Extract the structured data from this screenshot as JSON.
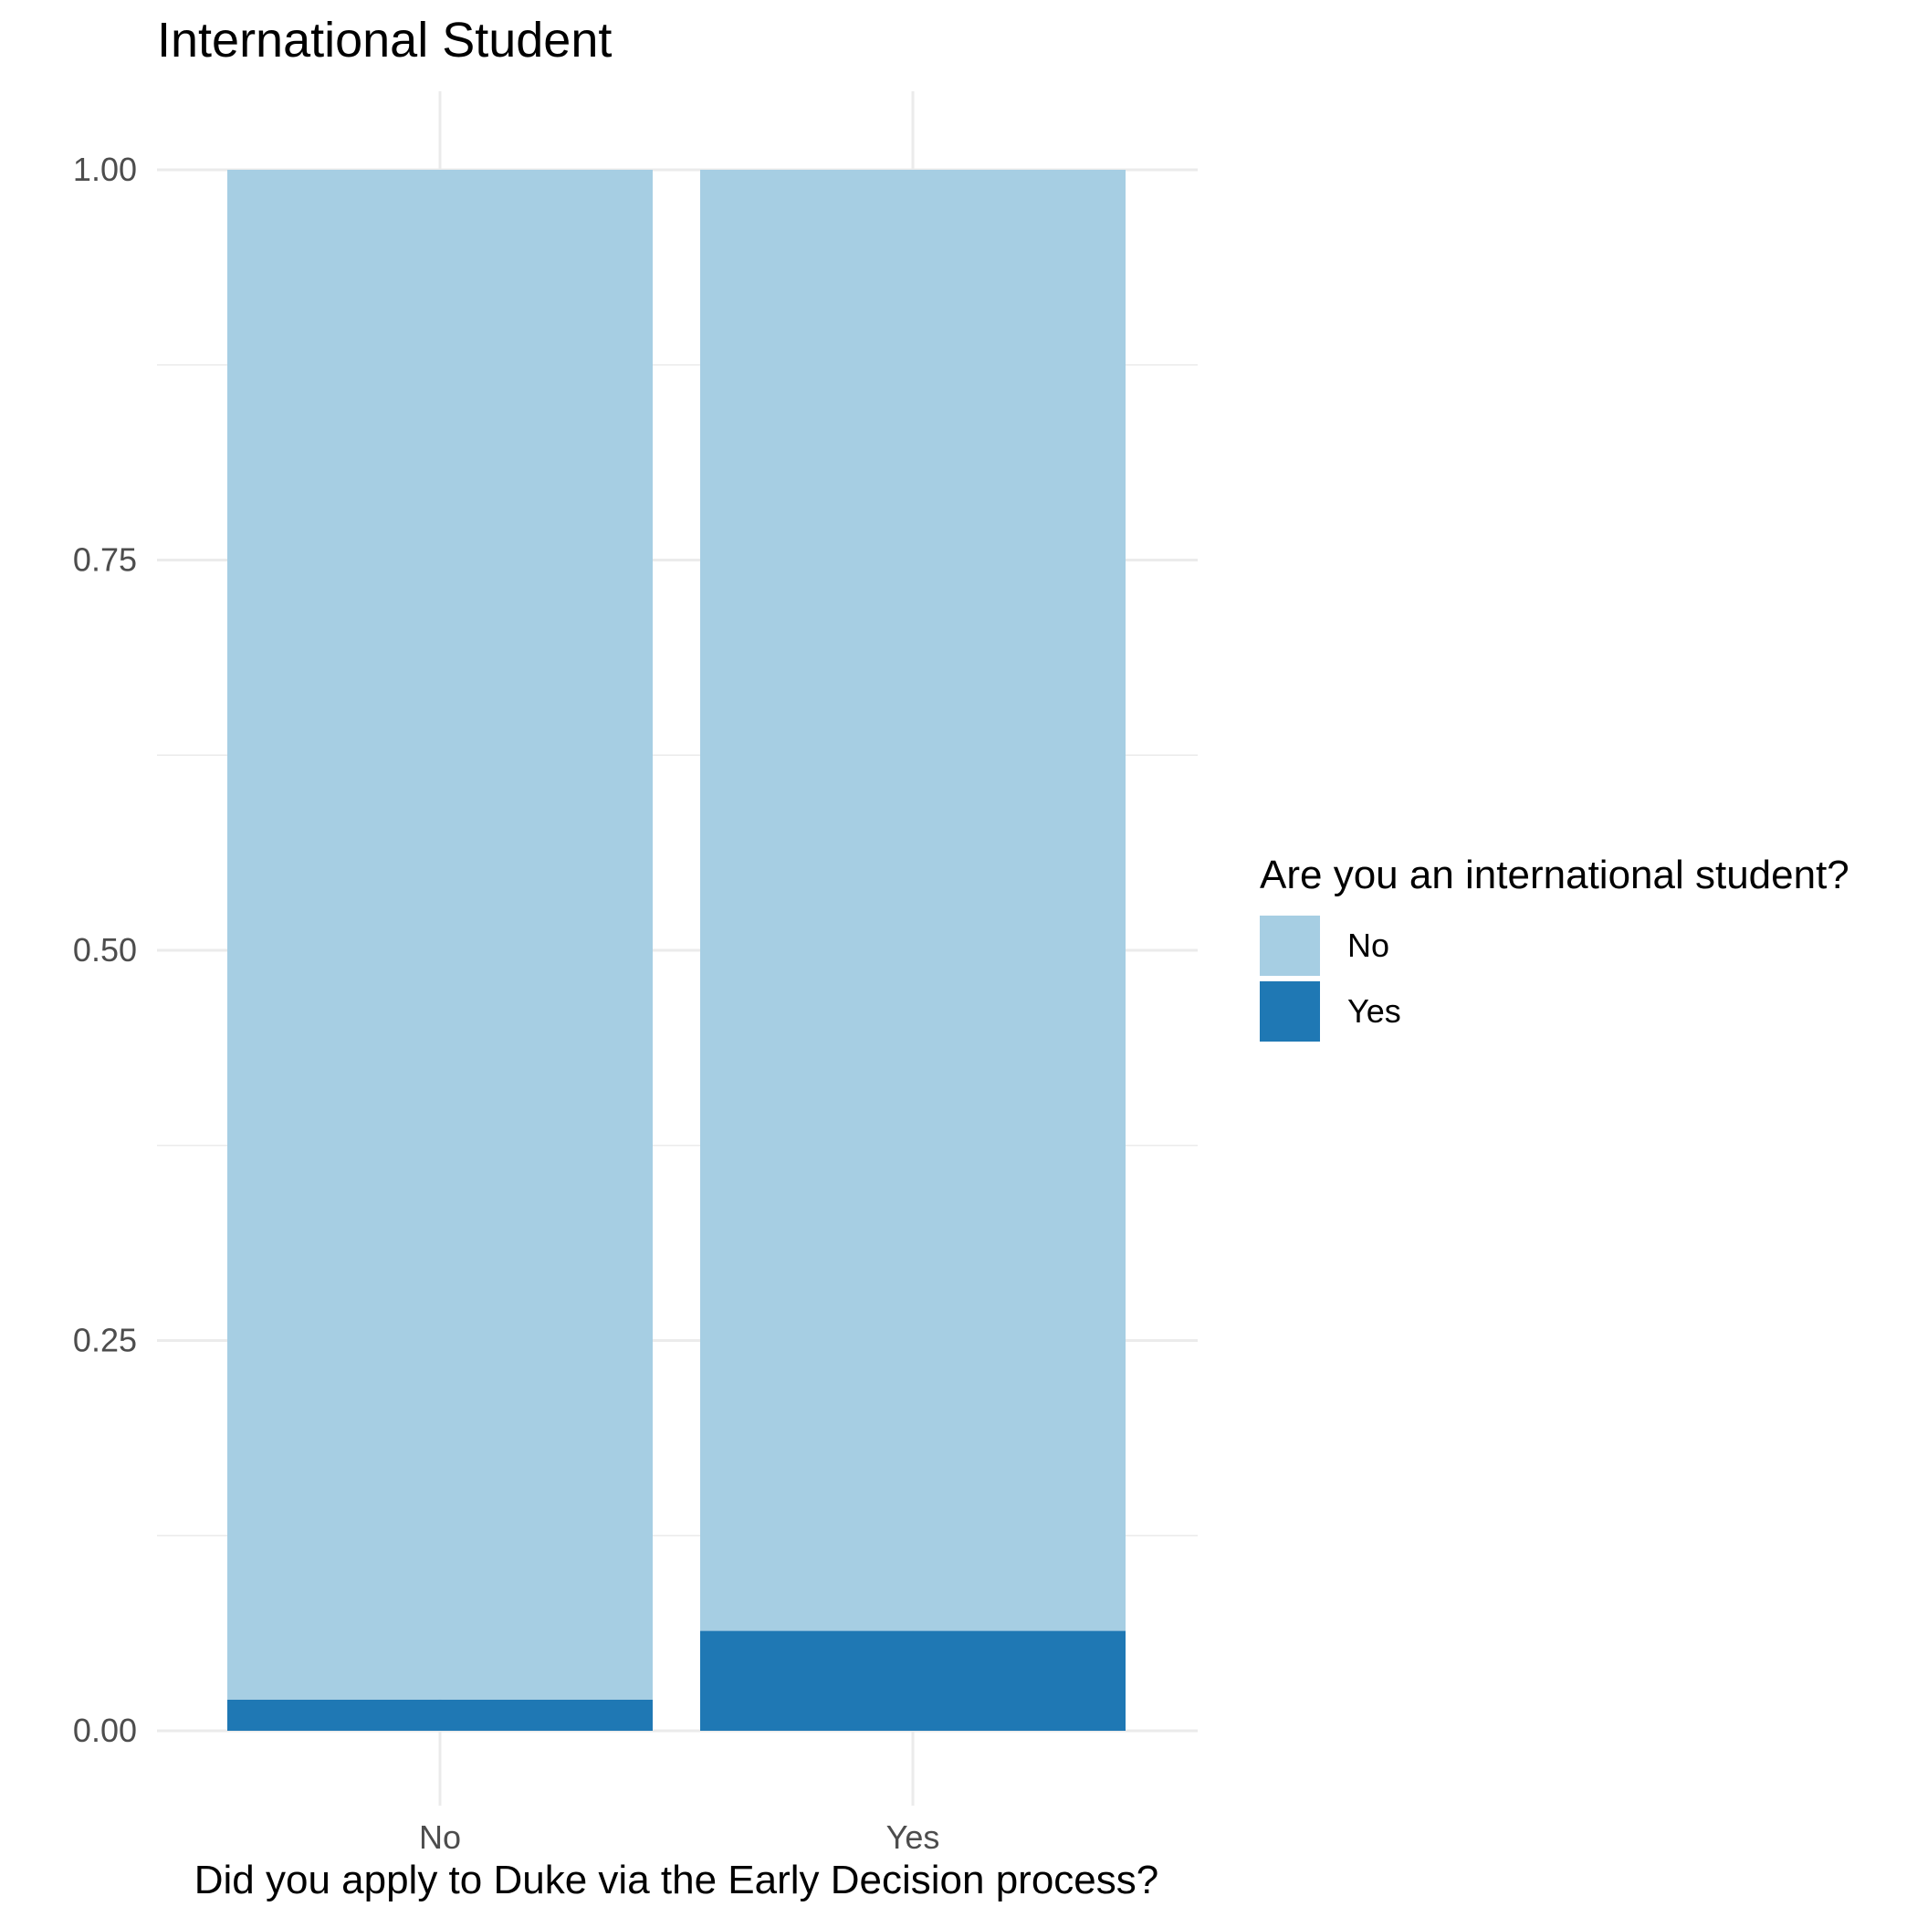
{
  "chart_data": {
    "type": "bar",
    "stacked": true,
    "title": "International Student",
    "xlabel": "Did you apply to Duke via the Early Decision process?",
    "ylabel": "",
    "categories": [
      "No",
      "Yes"
    ],
    "ylim": [
      0,
      1
    ],
    "yticks": [
      0.0,
      0.25,
      0.5,
      0.75,
      1.0
    ],
    "ytick_labels": [
      "0.00",
      "0.25",
      "0.50",
      "0.75",
      "1.00"
    ],
    "grid": true,
    "legend": {
      "title": "Are you an international student?",
      "placement": "right"
    },
    "series": [
      {
        "name": "Yes",
        "color": "#1f78b4",
        "values": [
          0.02,
          0.064
        ]
      },
      {
        "name": "No",
        "color": "#a6cee3",
        "values": [
          0.98,
          0.936
        ]
      }
    ],
    "legend_order": [
      "No",
      "Yes"
    ]
  }
}
